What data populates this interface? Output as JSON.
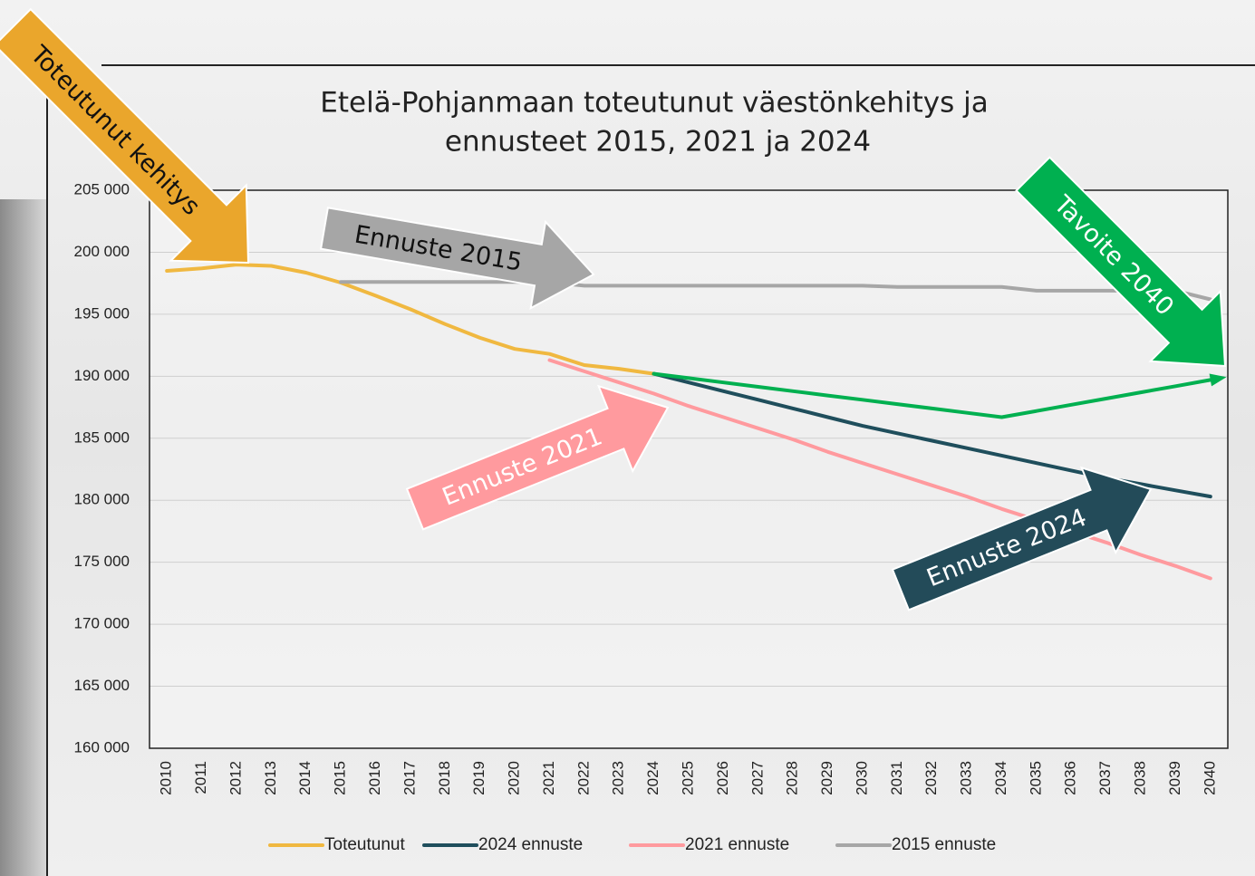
{
  "chart_data": {
    "type": "line",
    "title": [
      "Etelä-Pohjanmaan toteutunut väestönkehitys ja",
      "ennusteet 2015, 2021 ja 2024"
    ],
    "categories": [
      "2010",
      "2011",
      "2012",
      "2013",
      "2014",
      "2015",
      "2016",
      "2017",
      "2018",
      "2019",
      "2020",
      "2021",
      "2022",
      "2023",
      "2024",
      "2025",
      "2026",
      "2027",
      "2028",
      "2029",
      "2030",
      "2031",
      "2032",
      "2033",
      "2034",
      "2035",
      "2036",
      "2037",
      "2038",
      "2039",
      "2040"
    ],
    "series": [
      {
        "name": "Toteutunut",
        "color": "#f0b840",
        "values": [
          198500,
          198700,
          199000,
          198900,
          198350,
          197550,
          196500,
          195400,
          194200,
          193100,
          192200,
          191800,
          190900,
          190600,
          190200,
          null,
          null,
          null,
          null,
          null,
          null,
          null,
          null,
          null,
          null,
          null,
          null,
          null,
          null,
          null,
          null
        ]
      },
      {
        "name": "2024 ennuste",
        "color": "#1f4e5c",
        "values": [
          null,
          null,
          null,
          null,
          null,
          null,
          null,
          null,
          null,
          null,
          null,
          null,
          null,
          null,
          190200,
          189500,
          188800,
          188100,
          187400,
          186700,
          186000,
          185400,
          184800,
          184200,
          183600,
          183000,
          182400,
          181800,
          181300,
          180800,
          180300
        ]
      },
      {
        "name": "2021 ennuste",
        "color": "#ff9a9e",
        "values": [
          null,
          null,
          null,
          null,
          null,
          null,
          null,
          null,
          null,
          null,
          null,
          191300,
          190400,
          189500,
          188600,
          187600,
          186700,
          185800,
          184900,
          183900,
          183000,
          182100,
          181200,
          180300,
          179300,
          178400,
          177500,
          176600,
          175600,
          174700,
          173700
        ]
      },
      {
        "name": "2015 ennuste",
        "color": "#a6a6a6",
        "values": [
          null,
          null,
          null,
          null,
          null,
          197600,
          197600,
          197600,
          197600,
          197600,
          197600,
          197600,
          197300,
          197300,
          197300,
          197300,
          197300,
          197300,
          197300,
          197300,
          197300,
          197200,
          197200,
          197200,
          197200,
          196900,
          196900,
          196900,
          196900,
          196900,
          196200
        ]
      },
      {
        "color": "#00b050",
        "values": [
          null,
          null,
          null,
          null,
          null,
          null,
          null,
          null,
          null,
          null,
          null,
          null,
          null,
          null,
          190200,
          189850,
          189500,
          189150,
          188800,
          188450,
          188100,
          187750,
          187400,
          187050,
          186700,
          187200,
          187700,
          188200,
          188700,
          189200,
          189700
        ]
      }
    ],
    "ylim": [
      160000,
      205000
    ],
    "yticks": [
      {
        "value": 160000,
        "label": "160 000"
      },
      {
        "value": 165000,
        "label": "165 000"
      },
      {
        "value": 170000,
        "label": "170 000"
      },
      {
        "value": 175000,
        "label": "175 000"
      },
      {
        "value": 180000,
        "label": "180 000"
      },
      {
        "value": 185000,
        "label": "185 000"
      },
      {
        "value": 190000,
        "label": "190 000"
      },
      {
        "value": 195000,
        "label": "195 000"
      },
      {
        "value": 200000,
        "label": "200 000"
      },
      {
        "value": 205000,
        "label": "205 000"
      }
    ],
    "grid": true,
    "legend": "bottom",
    "annotations": [
      {
        "text": "Toteutunut kehitys",
        "color": "#eaa62c",
        "text_color": "#111111"
      },
      {
        "text": "Ennuste 2015",
        "color": "#a6a6a6",
        "text_color": "#111111"
      },
      {
        "text": "Ennuste 2021",
        "color": "#ff9a9e",
        "text_color": "#ffffff"
      },
      {
        "text": "Ennuste 2024",
        "color": "#234b59",
        "text_color": "#ffffff"
      },
      {
        "text": "Tavoite 2040",
        "color": "#00b050",
        "text_color": "#ffffff"
      }
    ]
  }
}
